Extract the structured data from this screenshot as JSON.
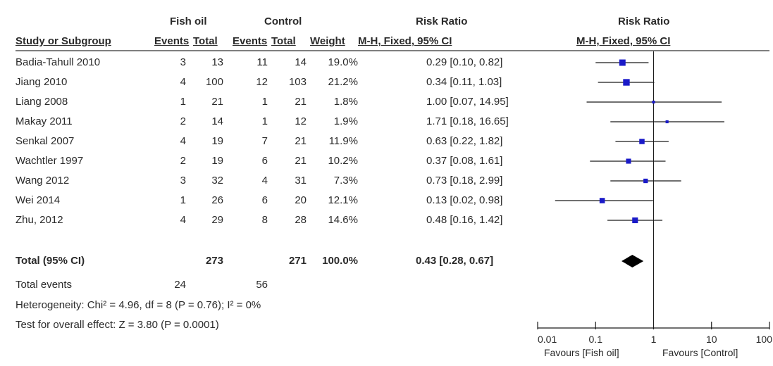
{
  "header": {
    "group1": "Fish oil",
    "group2": "Control",
    "rr_title": "Risk Ratio",
    "plot_title": "Risk Ratio",
    "study_col": "Study or Subgroup",
    "events1": "Events",
    "total1": "Total",
    "events2": "Events",
    "total2": "Total",
    "weight": "Weight",
    "method": "M-H, Fixed, 95% CI",
    "plot_method": "M-H, Fixed, 95% CI"
  },
  "studies": [
    {
      "name": "Badia-Tahull 2010",
      "e1": "3",
      "n1": "13",
      "e2": "11",
      "n2": "14",
      "weight": "19.0%",
      "ci": "0.29 [0.10, 0.82]"
    },
    {
      "name": "Jiang 2010",
      "e1": "4",
      "n1": "100",
      "e2": "12",
      "n2": "103",
      "weight": "21.2%",
      "ci": "0.34 [0.11, 1.03]"
    },
    {
      "name": "Liang 2008",
      "e1": "1",
      "n1": "21",
      "e2": "1",
      "n2": "21",
      "weight": "1.8%",
      "ci": "1.00 [0.07, 14.95]"
    },
    {
      "name": "Makay 2011",
      "e1": "2",
      "n1": "14",
      "e2": "1",
      "n2": "12",
      "weight": "1.9%",
      "ci": "1.71 [0.18, 16.65]"
    },
    {
      "name": "Senkal 2007",
      "e1": "4",
      "n1": "19",
      "e2": "7",
      "n2": "21",
      "weight": "11.9%",
      "ci": "0.63 [0.22, 1.82]"
    },
    {
      "name": "Wachtler 1997",
      "e1": "2",
      "n1": "19",
      "e2": "6",
      "n2": "21",
      "weight": "10.2%",
      "ci": "0.37 [0.08, 1.61]"
    },
    {
      "name": "Wang 2012",
      "e1": "3",
      "n1": "32",
      "e2": "4",
      "n2": "31",
      "weight": "7.3%",
      "ci": "0.73 [0.18, 2.99]"
    },
    {
      "name": "Wei 2014",
      "e1": "1",
      "n1": "26",
      "e2": "6",
      "n2": "20",
      "weight": "12.1%",
      "ci": "0.13 [0.02, 0.98]"
    },
    {
      "name": "Zhu, 2012",
      "e1": "4",
      "n1": "29",
      "e2": "8",
      "n2": "28",
      "weight": "14.6%",
      "ci": "0.48 [0.16, 1.42]"
    }
  ],
  "total": {
    "name": "Total (95% CI)",
    "n1": "273",
    "n2": "271",
    "weight": "100.0%",
    "ci": "0.43 [0.28, 0.67]"
  },
  "total_events": {
    "label": "Total events",
    "e1": "24",
    "e2": "56"
  },
  "heterogeneity": "Heterogeneity: Chi² = 4.96, df = 8 (P = 0.76); I² = 0%",
  "overall": "Test for overall effect: Z = 3.80 (P = 0.0001)",
  "axis": {
    "ticks": [
      {
        "v": 0.01,
        "label": "0.01"
      },
      {
        "v": 0.1,
        "label": "0.1"
      },
      {
        "v": 1,
        "label": "1"
      },
      {
        "v": 10,
        "label": "10"
      },
      {
        "v": 100,
        "label": "100"
      }
    ],
    "favours_left": "Favours [Fish oil]",
    "favours_right": "Favours [Control]"
  },
  "colors": {
    "point": "#1a1ac8",
    "line": "#1a1a1a",
    "diamond": "#000000"
  },
  "chart_data": {
    "type": "forest",
    "scale": "log",
    "xlim": [
      0.01,
      100
    ],
    "null_value": 1,
    "series": [
      {
        "name": "Badia-Tahull 2010",
        "rr": 0.29,
        "lo": 0.1,
        "hi": 0.82,
        "weight": 19.0
      },
      {
        "name": "Jiang 2010",
        "rr": 0.34,
        "lo": 0.11,
        "hi": 1.03,
        "weight": 21.2
      },
      {
        "name": "Liang 2008",
        "rr": 1.0,
        "lo": 0.07,
        "hi": 14.95,
        "weight": 1.8
      },
      {
        "name": "Makay 2011",
        "rr": 1.71,
        "lo": 0.18,
        "hi": 16.65,
        "weight": 1.9
      },
      {
        "name": "Senkal 2007",
        "rr": 0.63,
        "lo": 0.22,
        "hi": 1.82,
        "weight": 11.9
      },
      {
        "name": "Wachtler 1997",
        "rr": 0.37,
        "lo": 0.08,
        "hi": 1.61,
        "weight": 10.2
      },
      {
        "name": "Wang 2012",
        "rr": 0.73,
        "lo": 0.18,
        "hi": 2.99,
        "weight": 7.3
      },
      {
        "name": "Wei 2014",
        "rr": 0.13,
        "lo": 0.02,
        "hi": 0.98,
        "weight": 12.1
      },
      {
        "name": "Zhu, 2012",
        "rr": 0.48,
        "lo": 0.16,
        "hi": 1.42,
        "weight": 14.6
      }
    ],
    "pooled": {
      "name": "Total (95% CI)",
      "rr": 0.43,
      "lo": 0.28,
      "hi": 0.67,
      "weight": 100.0
    }
  }
}
